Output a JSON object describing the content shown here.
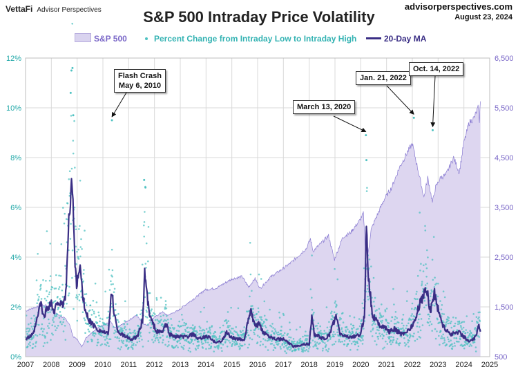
{
  "header": {
    "brand": "VettaFi",
    "brand_sub": "Advisor Perspectives",
    "site": "advisorperspectives.com",
    "date": "August 23, 2024"
  },
  "colors": {
    "price_fill": "#ddd6f0",
    "price_line": "#8a7cd2",
    "scatter": "#4fc2c2",
    "ma_line": "#3a2e85",
    "grid": "#d9d9d9",
    "left_axis": "#1fa7a7",
    "right_axis": "#7b68c8"
  },
  "chart_data": {
    "type": "line",
    "title": "S&P 500 Intraday Price Volatility",
    "legend": [
      "S&P 500",
      "Percent Change from Intraday Low to Intraday High",
      "20-Day MA"
    ],
    "legend_position": "top",
    "grid": true,
    "x_ticks": [
      "2007",
      "2008",
      "2009",
      "2010",
      "2011",
      "2012",
      "2013",
      "2014",
      "2015",
      "2016",
      "2017",
      "2018",
      "2019",
      "2020",
      "2021",
      "2022",
      "2023",
      "2024",
      "2025"
    ],
    "xlim": [
      2007,
      2025
    ],
    "y_left_ticks": [
      "0%",
      "2%",
      "4%",
      "6%",
      "8%",
      "10%",
      "12%"
    ],
    "ylim_left": [
      0,
      12
    ],
    "y_right_ticks": [
      "500",
      "1,500",
      "2,500",
      "3,500",
      "4,500",
      "5,500",
      "6,500"
    ],
    "ylim_right": [
      500,
      6500
    ],
    "series": [
      {
        "name": "S&P 500",
        "axis": "right",
        "type": "area",
        "x": [
          2007.0,
          2007.3,
          2007.6,
          2007.8,
          2008.0,
          2008.3,
          2008.55,
          2008.7,
          2008.85,
          2009.0,
          2009.18,
          2009.35,
          2009.6,
          2009.9,
          2010.3,
          2010.45,
          2010.6,
          2010.9,
          2011.3,
          2011.6,
          2011.75,
          2011.9,
          2012.3,
          2012.5,
          2012.9,
          2013.3,
          2013.6,
          2013.95,
          2014.4,
          2014.7,
          2015.0,
          2015.4,
          2015.65,
          2015.9,
          2016.1,
          2016.5,
          2016.9,
          2017.3,
          2017.9,
          2018.05,
          2018.15,
          2018.5,
          2018.75,
          2018.98,
          2019.3,
          2019.6,
          2019.95,
          2020.1,
          2020.22,
          2020.4,
          2020.6,
          2020.9,
          2021.2,
          2021.5,
          2021.8,
          2022.0,
          2022.2,
          2022.45,
          2022.6,
          2022.78,
          2022.9,
          2023.1,
          2023.3,
          2023.6,
          2023.82,
          2023.99,
          2024.2,
          2024.4,
          2024.55,
          2024.6,
          2024.64
        ],
        "values": [
          1418,
          1480,
          1520,
          1540,
          1420,
          1330,
          1260,
          1150,
          900,
          850,
          700,
          880,
          1000,
          1110,
          1200,
          1080,
          1100,
          1200,
          1330,
          1150,
          1130,
          1250,
          1400,
          1330,
          1420,
          1580,
          1690,
          1840,
          1880,
          1970,
          2060,
          2110,
          1900,
          2070,
          1870,
          2100,
          2240,
          2390,
          2680,
          2870,
          2620,
          2800,
          2930,
          2450,
          2900,
          2990,
          3230,
          3380,
          2300,
          3050,
          3300,
          3650,
          3900,
          4300,
          4600,
          4780,
          4300,
          3700,
          4100,
          3600,
          3900,
          4100,
          4150,
          4500,
          4200,
          4770,
          5200,
          5300,
          5500,
          5250,
          5630
        ]
      },
      {
        "name": "Percent Change from Intraday Low to Intraday High",
        "axis": "left",
        "type": "scatter",
        "notable_points": [
          {
            "x": 2008.78,
            "y": 11.5
          },
          {
            "x": 2008.82,
            "y": 11.6
          },
          {
            "x": 2008.75,
            "y": 10.6
          },
          {
            "x": 2008.85,
            "y": 9.7
          },
          {
            "x": 2010.35,
            "y": 9.5
          },
          {
            "x": 2011.6,
            "y": 7.1
          },
          {
            "x": 2011.65,
            "y": 6.8
          },
          {
            "x": 2020.2,
            "y": 8.9
          },
          {
            "x": 2020.22,
            "y": 7.9
          },
          {
            "x": 2022.06,
            "y": 9.6
          },
          {
            "x": 2022.79,
            "y": 9.1
          }
        ]
      },
      {
        "name": "20-Day MA",
        "axis": "left",
        "type": "line",
        "x": [
          2007.0,
          2007.15,
          2007.3,
          2007.45,
          2007.58,
          2007.7,
          2007.85,
          2008.0,
          2008.1,
          2008.25,
          2008.4,
          2008.55,
          2008.7,
          2008.78,
          2008.85,
          2008.92,
          2009.0,
          2009.1,
          2009.2,
          2009.3,
          2009.45,
          2009.6,
          2009.8,
          2010.0,
          2010.2,
          2010.35,
          2010.42,
          2010.55,
          2010.7,
          2010.9,
          2011.1,
          2011.35,
          2011.55,
          2011.62,
          2011.7,
          2011.8,
          2011.95,
          2012.1,
          2012.3,
          2012.45,
          2012.6,
          2012.8,
          2013.0,
          2013.3,
          2013.5,
          2013.7,
          2014.0,
          2014.1,
          2014.3,
          2014.6,
          2014.8,
          2014.95,
          2015.2,
          2015.5,
          2015.65,
          2015.75,
          2015.9,
          2016.05,
          2016.2,
          2016.5,
          2016.8,
          2017.0,
          2017.4,
          2017.8,
          2018.0,
          2018.1,
          2018.2,
          2018.4,
          2018.6,
          2018.8,
          2018.95,
          2019.05,
          2019.2,
          2019.5,
          2019.8,
          2020.0,
          2020.15,
          2020.22,
          2020.3,
          2020.45,
          2020.7,
          2020.9,
          2021.1,
          2021.3,
          2021.6,
          2021.9,
          2022.0,
          2022.1,
          2022.3,
          2022.45,
          2022.55,
          2022.7,
          2022.85,
          2023.0,
          2023.2,
          2023.5,
          2023.8,
          2024.0,
          2024.2,
          2024.4,
          2024.58,
          2024.65
        ],
        "values": [
          0.7,
          0.8,
          0.9,
          1.5,
          2.2,
          1.6,
          2.0,
          2.2,
          1.7,
          2.3,
          2.0,
          2.4,
          5.8,
          7.4,
          5.9,
          3.6,
          2.8,
          3.8,
          2.6,
          1.9,
          1.5,
          1.3,
          1.1,
          1.0,
          0.9,
          2.7,
          1.9,
          1.1,
          0.9,
          0.8,
          0.7,
          0.8,
          1.5,
          3.5,
          2.6,
          1.7,
          1.3,
          1.0,
          1.0,
          1.3,
          0.9,
          0.8,
          0.8,
          0.8,
          0.9,
          0.7,
          0.8,
          0.8,
          0.6,
          0.6,
          1.0,
          0.8,
          0.7,
          0.7,
          1.6,
          1.8,
          1.2,
          1.3,
          1.0,
          0.8,
          0.7,
          0.7,
          0.4,
          0.5,
          0.5,
          1.6,
          0.9,
          0.8,
          0.7,
          0.9,
          1.4,
          1.6,
          0.9,
          0.8,
          0.8,
          0.9,
          1.7,
          5.5,
          3.2,
          1.7,
          1.3,
          1.2,
          1.0,
          1.1,
          0.9,
          1.1,
          1.3,
          1.4,
          2.2,
          2.5,
          2.8,
          1.8,
          2.6,
          1.9,
          1.2,
          0.9,
          1.0,
          0.8,
          0.6,
          0.7,
          1.2,
          1.0
        ]
      }
    ],
    "annotations": [
      {
        "text": "Flash Crash\nMay 6, 2010",
        "x": 2010.35,
        "y": 9.5
      },
      {
        "text": "March 13, 2020",
        "x": 2020.2,
        "y": 8.9
      },
      {
        "text": "Jan. 21, 2022",
        "x": 2022.06,
        "y": 9.6
      },
      {
        "text": "Oct. 14, 2022",
        "x": 2022.79,
        "y": 9.1
      }
    ]
  }
}
